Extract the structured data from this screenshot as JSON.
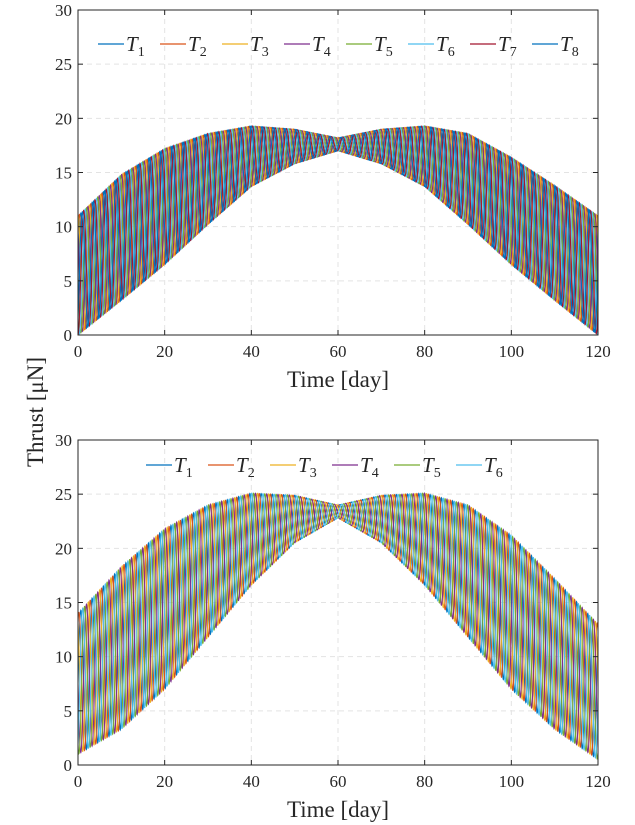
{
  "ylabel": "Thrust [μN]",
  "chart_data": [
    {
      "type": "line",
      "xlabel": "Time [day]",
      "xlim": [
        0,
        120
      ],
      "ylim": [
        0,
        30
      ],
      "xticks": [
        0,
        20,
        40,
        60,
        80,
        100,
        120
      ],
      "yticks": [
        0,
        5,
        10,
        15,
        20,
        25,
        30
      ],
      "grid": true,
      "legend_position": "top, horizontal",
      "envelope": {
        "x": [
          0,
          10,
          20,
          30,
          40,
          50,
          60,
          70,
          80,
          90,
          100,
          110,
          120
        ],
        "upper": [
          11,
          14.8,
          17.2,
          18.6,
          19.3,
          19.0,
          18.2,
          19.0,
          19.3,
          18.6,
          16.4,
          13.8,
          11
        ],
        "lower": [
          0,
          3.2,
          6.5,
          10.2,
          13.7,
          15.8,
          17.0,
          15.8,
          13.7,
          10.2,
          6.5,
          3.2,
          0
        ]
      },
      "oscillation_period_days": 2.6,
      "series": [
        {
          "name": "T",
          "subscript": "1",
          "color": "#0072BD"
        },
        {
          "name": "T",
          "subscript": "2",
          "color": "#D95319"
        },
        {
          "name": "T",
          "subscript": "3",
          "color": "#EDB120"
        },
        {
          "name": "T",
          "subscript": "4",
          "color": "#7E2F8E"
        },
        {
          "name": "T",
          "subscript": "5",
          "color": "#77AC30"
        },
        {
          "name": "T",
          "subscript": "6",
          "color": "#4DBEEE"
        },
        {
          "name": "T",
          "subscript": "7",
          "color": "#A2142F"
        },
        {
          "name": "T",
          "subscript": "8",
          "color": "#0072BD"
        }
      ]
    },
    {
      "type": "line",
      "xlabel": "Time [day]",
      "xlim": [
        0,
        120
      ],
      "ylim": [
        0,
        30
      ],
      "xticks": [
        0,
        20,
        40,
        60,
        80,
        100,
        120
      ],
      "yticks": [
        0,
        5,
        10,
        15,
        20,
        25,
        30
      ],
      "grid": true,
      "legend_position": "top, horizontal",
      "envelope": {
        "x": [
          0,
          10,
          20,
          30,
          40,
          50,
          60,
          70,
          80,
          90,
          100,
          110,
          120
        ],
        "upper": [
          14,
          18.3,
          21.8,
          24.0,
          25.1,
          24.9,
          24.0,
          24.9,
          25.1,
          24.0,
          21.2,
          17.2,
          13
        ],
        "lower": [
          1,
          3.3,
          7.0,
          11.8,
          16.6,
          20.5,
          22.8,
          20.5,
          16.6,
          11.8,
          7.0,
          3.3,
          0.5
        ]
      },
      "oscillation_period_days": 2.6,
      "series": [
        {
          "name": "T",
          "subscript": "1",
          "color": "#0072BD"
        },
        {
          "name": "T",
          "subscript": "2",
          "color": "#D95319"
        },
        {
          "name": "T",
          "subscript": "3",
          "color": "#EDB120"
        },
        {
          "name": "T",
          "subscript": "4",
          "color": "#7E2F8E"
        },
        {
          "name": "T",
          "subscript": "5",
          "color": "#77AC30"
        },
        {
          "name": "T",
          "subscript": "6",
          "color": "#4DBEEE"
        }
      ]
    }
  ]
}
